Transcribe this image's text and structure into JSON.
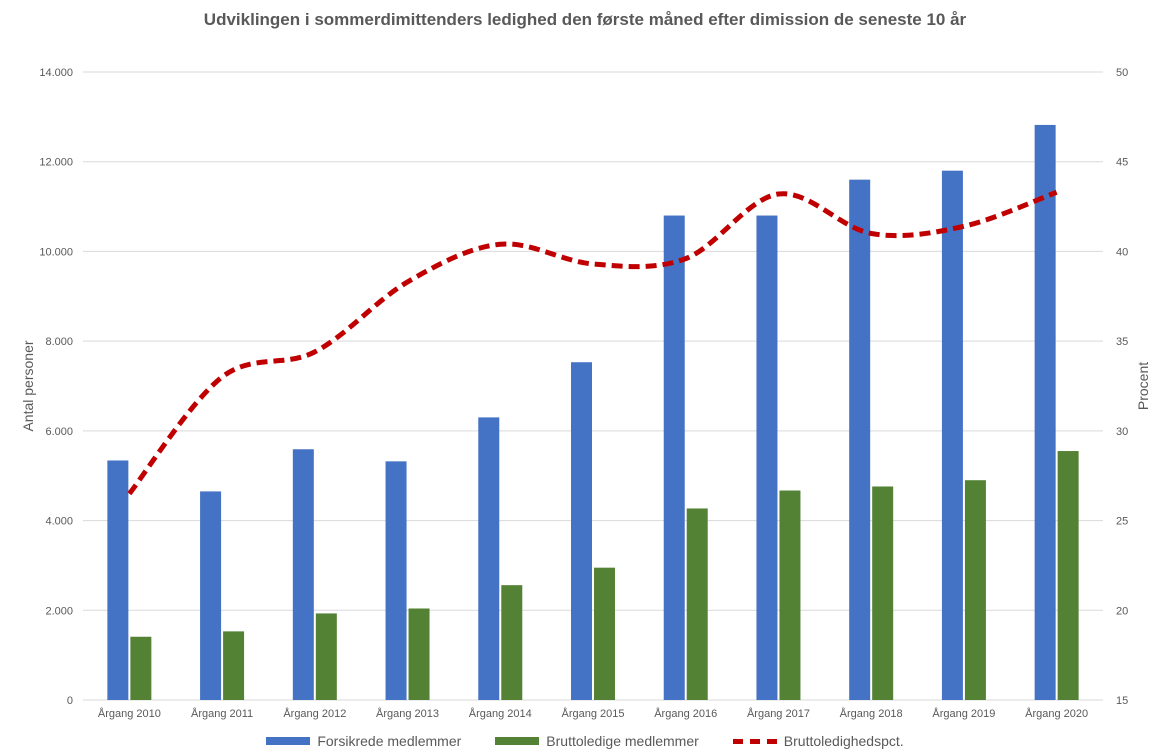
{
  "chart_data": {
    "type": "bar",
    "title": "Udviklingen i sommerdimittenders ledighed den første måned efter dimission de seneste 10 år",
    "categories": [
      "Årgang 2010",
      "Årgang 2011",
      "Årgang 2012",
      "Årgang 2013",
      "Årgang 2014",
      "Årgang 2015",
      "Årgang 2016",
      "Årgang 2017",
      "Årgang 2018",
      "Årgang 2019",
      "Årgang 2020"
    ],
    "series": [
      {
        "name": "Forsikrede medlemmer",
        "type": "bar",
        "axis": "left",
        "color": "#4472c4",
        "values": [
          5340,
          4650,
          5590,
          5320,
          6300,
          7530,
          10800,
          10800,
          11600,
          11800,
          12820
        ]
      },
      {
        "name": "Bruttoledige medlemmer",
        "type": "bar",
        "axis": "left",
        "color": "#548235",
        "values": [
          1410,
          1530,
          1930,
          2040,
          2560,
          2950,
          4270,
          4670,
          4760,
          4900,
          5550
        ]
      },
      {
        "name": "Bruttoledighedspct.",
        "type": "line",
        "axis": "right",
        "color": "#c00000",
        "style": "dashed",
        "values": [
          26.5,
          33.0,
          34.4,
          38.3,
          40.4,
          39.3,
          39.6,
          43.2,
          41.0,
          41.4,
          43.3
        ]
      }
    ],
    "y_left": {
      "label": "Antal personer",
      "min": 0,
      "max": 14000,
      "step": 2000,
      "tick_labels": [
        "0",
        "2.000",
        "4.000",
        "6.000",
        "8.000",
        "10.000",
        "12.000",
        "14.000"
      ]
    },
    "y_right": {
      "label": "Procent",
      "min": 15,
      "max": 50,
      "step": 5,
      "tick_labels": [
        "15",
        "20",
        "25",
        "30",
        "35",
        "40",
        "45",
        "50"
      ]
    },
    "grid": true,
    "legend": "bottom"
  }
}
